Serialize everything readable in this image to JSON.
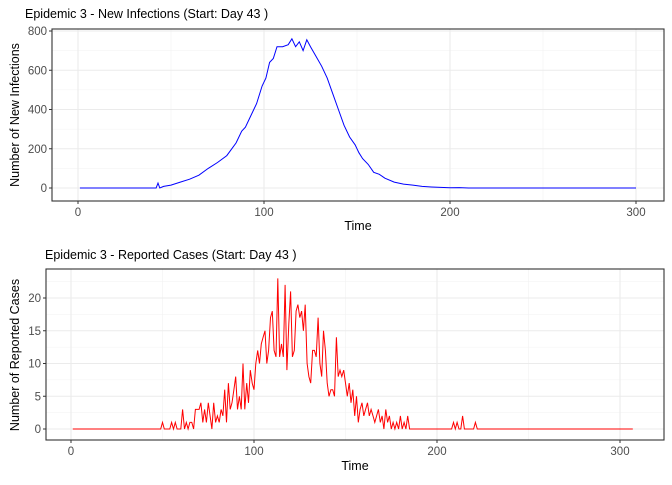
{
  "chart_data": [
    {
      "type": "line",
      "title": "Epidemic 3 - New Infections (Start: Day 43 )",
      "xlabel": "Time",
      "ylabel": "Number of New Infections",
      "xlim": [
        1,
        300
      ],
      "ylim": [
        0,
        800
      ],
      "xticks": [
        0,
        100,
        200,
        300
      ],
      "yticks": [
        0,
        200,
        400,
        600,
        800
      ],
      "grid": true,
      "color": "#0000ff",
      "points": [
        [
          1,
          0
        ],
        [
          42,
          0
        ],
        [
          43,
          25
        ],
        [
          44,
          0
        ],
        [
          46,
          8
        ],
        [
          50,
          15
        ],
        [
          55,
          30
        ],
        [
          60,
          45
        ],
        [
          65,
          65
        ],
        [
          70,
          100
        ],
        [
          75,
          130
        ],
        [
          80,
          165
        ],
        [
          85,
          230
        ],
        [
          88,
          290
        ],
        [
          90,
          310
        ],
        [
          93,
          370
        ],
        [
          96,
          430
        ],
        [
          99,
          520
        ],
        [
          101,
          560
        ],
        [
          103,
          640
        ],
        [
          105,
          660
        ],
        [
          107,
          720
        ],
        [
          110,
          720
        ],
        [
          113,
          730
        ],
        [
          115,
          760
        ],
        [
          117,
          720
        ],
        [
          119,
          745
        ],
        [
          121,
          700
        ],
        [
          123,
          755
        ],
        [
          125,
          720
        ],
        [
          128,
          670
        ],
        [
          131,
          620
        ],
        [
          134,
          560
        ],
        [
          137,
          480
        ],
        [
          140,
          400
        ],
        [
          143,
          320
        ],
        [
          146,
          260
        ],
        [
          149,
          220
        ],
        [
          151,
          180
        ],
        [
          153,
          150
        ],
        [
          156,
          120
        ],
        [
          159,
          80
        ],
        [
          162,
          70
        ],
        [
          165,
          50
        ],
        [
          170,
          30
        ],
        [
          175,
          20
        ],
        [
          180,
          15
        ],
        [
          185,
          8
        ],
        [
          190,
          5
        ],
        [
          195,
          3
        ],
        [
          200,
          1
        ],
        [
          205,
          2
        ],
        [
          210,
          0
        ],
        [
          300,
          0
        ]
      ]
    },
    {
      "type": "line",
      "title": "Epidemic 3 - Reported Cases (Start: Day 43 )",
      "xlabel": "Time",
      "ylabel": "Number of Reported Cases",
      "xlim": [
        1,
        307
      ],
      "ylim": [
        0,
        23
      ],
      "xticks": [
        0,
        100,
        200,
        300
      ],
      "yticks": [
        0,
        5,
        10,
        15,
        20
      ],
      "grid": true,
      "color": "#ff0000",
      "points": [
        [
          1,
          0
        ],
        [
          49,
          0
        ],
        [
          50,
          1
        ],
        [
          51,
          0
        ],
        [
          54,
          0
        ],
        [
          55,
          1
        ],
        [
          56,
          0
        ],
        [
          57,
          1
        ],
        [
          58,
          0
        ],
        [
          60,
          0
        ],
        [
          61,
          3
        ],
        [
          62,
          0
        ],
        [
          63,
          1
        ],
        [
          64,
          0
        ],
        [
          65,
          1
        ],
        [
          66,
          1
        ],
        [
          67,
          0
        ],
        [
          68,
          3
        ],
        [
          70,
          3
        ],
        [
          71,
          4
        ],
        [
          72,
          1
        ],
        [
          73,
          3
        ],
        [
          74,
          1
        ],
        [
          75,
          4
        ],
        [
          76,
          2
        ],
        [
          77,
          0
        ],
        [
          78,
          4
        ],
        [
          79,
          1
        ],
        [
          80,
          2
        ],
        [
          81,
          1
        ],
        [
          82,
          3
        ],
        [
          83,
          2
        ],
        [
          84,
          6
        ],
        [
          85,
          1
        ],
        [
          86,
          7
        ],
        [
          87,
          3
        ],
        [
          88,
          4
        ],
        [
          89,
          6
        ],
        [
          90,
          8
        ],
        [
          91,
          3
        ],
        [
          92,
          5
        ],
        [
          93,
          3
        ],
        [
          94,
          10
        ],
        [
          95,
          3
        ],
        [
          96,
          7
        ],
        [
          97,
          4
        ],
        [
          98,
          9
        ],
        [
          99,
          7
        ],
        [
          100,
          6
        ],
        [
          101,
          10
        ],
        [
          102,
          12
        ],
        [
          103,
          10
        ],
        [
          104,
          13
        ],
        [
          105,
          14
        ],
        [
          106,
          15
        ],
        [
          107,
          10
        ],
        [
          108,
          12
        ],
        [
          109,
          17
        ],
        [
          110,
          18
        ],
        [
          111,
          12
        ],
        [
          112,
          11
        ],
        [
          113,
          23
        ],
        [
          114,
          11
        ],
        [
          115,
          13
        ],
        [
          116,
          11
        ],
        [
          117,
          22
        ],
        [
          118,
          9
        ],
        [
          119,
          16
        ],
        [
          120,
          21
        ],
        [
          121,
          11
        ],
        [
          122,
          12
        ],
        [
          123,
          18
        ],
        [
          124,
          19
        ],
        [
          125,
          17
        ],
        [
          126,
          18
        ],
        [
          127,
          15
        ],
        [
          128,
          19
        ],
        [
          129,
          10
        ],
        [
          130,
          8
        ],
        [
          131,
          7
        ],
        [
          132,
          12
        ],
        [
          133,
          12
        ],
        [
          134,
          11
        ],
        [
          135,
          17
        ],
        [
          136,
          10
        ],
        [
          137,
          8
        ],
        [
          138,
          15
        ],
        [
          139,
          12
        ],
        [
          140,
          7
        ],
        [
          141,
          5
        ],
        [
          142,
          6
        ],
        [
          143,
          6
        ],
        [
          144,
          5
        ],
        [
          145,
          14
        ],
        [
          146,
          8
        ],
        [
          147,
          9
        ],
        [
          148,
          8
        ],
        [
          149,
          9
        ],
        [
          150,
          7
        ],
        [
          151,
          5
        ],
        [
          152,
          7
        ],
        [
          153,
          4
        ],
        [
          154,
          6
        ],
        [
          155,
          2
        ],
        [
          156,
          5
        ],
        [
          157,
          1
        ],
        [
          158,
          3
        ],
        [
          159,
          4
        ],
        [
          160,
          2
        ],
        [
          161,
          3
        ],
        [
          162,
          4
        ],
        [
          163,
          2
        ],
        [
          164,
          3
        ],
        [
          165,
          2
        ],
        [
          166,
          1
        ],
        [
          167,
          2
        ],
        [
          168,
          3
        ],
        [
          169,
          1
        ],
        [
          170,
          2
        ],
        [
          171,
          0
        ],
        [
          172,
          3
        ],
        [
          173,
          1
        ],
        [
          174,
          2
        ],
        [
          175,
          0
        ],
        [
          176,
          1
        ],
        [
          177,
          0
        ],
        [
          178,
          1
        ],
        [
          179,
          0
        ],
        [
          180,
          2
        ],
        [
          181,
          0
        ],
        [
          182,
          1
        ],
        [
          183,
          0
        ],
        [
          184,
          2
        ],
        [
          185,
          0
        ],
        [
          208,
          0
        ],
        [
          209,
          1
        ],
        [
          210,
          0
        ],
        [
          211,
          1
        ],
        [
          212,
          0
        ],
        [
          213,
          0
        ],
        [
          214,
          2
        ],
        [
          215,
          0
        ],
        [
          220,
          0
        ],
        [
          221,
          1
        ],
        [
          222,
          0
        ],
        [
          307,
          0
        ]
      ]
    }
  ]
}
